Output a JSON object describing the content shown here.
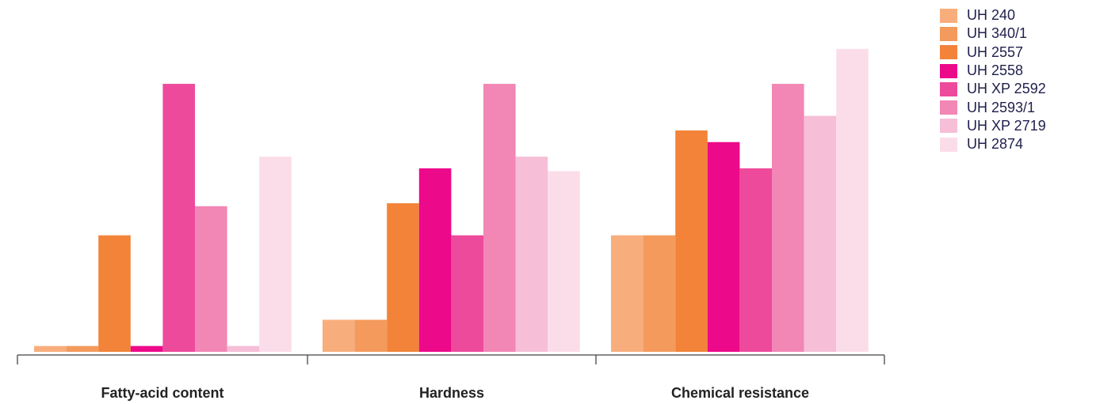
{
  "chart_data": {
    "type": "bar",
    "categories": [
      "Fatty-acid content",
      "Hardness",
      "Chemical resistance"
    ],
    "series": [
      {
        "name": "UH 240",
        "color": "#f8ae7c",
        "values": [
          0.2,
          1.1,
          4.0
        ]
      },
      {
        "name": "UH 340/1",
        "color": "#f39a5c",
        "values": [
          0.2,
          1.1,
          4.0
        ]
      },
      {
        "name": "UH 2557",
        "color": "#f28339",
        "values": [
          4.0,
          5.1,
          7.6
        ]
      },
      {
        "name": "UH 2558",
        "color": "#ec098a",
        "values": [
          0.2,
          6.3,
          7.2
        ]
      },
      {
        "name": "UH XP 2592",
        "color": "#ee4a9b",
        "values": [
          9.2,
          4.0,
          6.3
        ]
      },
      {
        "name": "UH 2593/1",
        "color": "#f286b5",
        "values": [
          5.0,
          9.2,
          9.2
        ]
      },
      {
        "name": "UH XP 2719",
        "color": "#f6bed7",
        "values": [
          0.2,
          6.7,
          8.1
        ]
      },
      {
        "name": "UH 2874",
        "color": "#fbdde9",
        "values": [
          6.7,
          6.2,
          10.4
        ]
      }
    ],
    "ylim": [
      0,
      11
    ],
    "grid": false,
    "legend": "top-right"
  }
}
